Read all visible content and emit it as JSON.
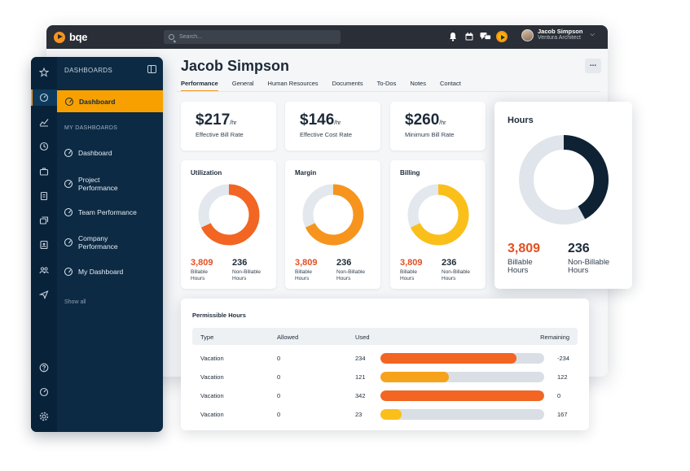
{
  "app": {
    "logo_text": "bqe"
  },
  "search": {
    "placeholder": "Search..."
  },
  "top_icons": [
    "bell-icon",
    "calendar-icon",
    "chat-icon",
    "timer-play-icon"
  ],
  "user": {
    "name": "Jacob Simpson",
    "role": "Ventura Architect"
  },
  "page": {
    "title": "Jacob Simpson",
    "more": "..."
  },
  "tabs": [
    "Performance",
    "General",
    "Human Resources",
    "Documents",
    "To-Dos",
    "Notes",
    "Contact"
  ],
  "active_tab": "Performance",
  "stats": [
    {
      "value": "$217",
      "unit": "/hr",
      "label": "Effective Bill Rate"
    },
    {
      "value": "$146",
      "unit": "/hr",
      "label": "Effective Cost Rate"
    },
    {
      "value": "$260",
      "unit": "/hr",
      "label": "Minimum Bill Rate"
    }
  ],
  "mini_charts": [
    {
      "title": "Utilization",
      "fraction": 0.68,
      "color": "#f26522",
      "track": "#e3e8ee",
      "billable": "3,809",
      "billable_label": [
        "Billable",
        "Hours"
      ],
      "non_billable": "236",
      "non_billable_label": [
        "Non-Billable",
        "Hours"
      ]
    },
    {
      "title": "Margin",
      "fraction": 0.68,
      "color": "#f7941d",
      "track": "#e3e8ee",
      "billable": "3,809",
      "billable_label": [
        "Billable",
        "Hours"
      ],
      "non_billable": "236",
      "non_billable_label": [
        "Non-Billable",
        "Hours"
      ]
    },
    {
      "title": "Billing",
      "fraction": 0.68,
      "color": "#fbbf1a",
      "track": "#e3e8ee",
      "billable": "3,809",
      "billable_label": [
        "Billable",
        "Hours"
      ],
      "non_billable": "236",
      "non_billable_label": [
        "Non-Billable",
        "Hours"
      ]
    }
  ],
  "hours": {
    "title": "Hours",
    "fraction": 0.42,
    "color": "#0f2233",
    "track": "#dfe5eb",
    "billable": "3,809",
    "billable_label": [
      "Billable",
      "Hours"
    ],
    "non_billable": "236",
    "non_billable_label": [
      "Non-Billable",
      "Hours"
    ]
  },
  "sidebar": {
    "header": "DASHBOARDS",
    "active_item": "Dashboard",
    "section": "MY DASHBOARDS",
    "items": [
      [
        "Dashboard"
      ],
      [
        "Project",
        "Performance"
      ],
      [
        "Team Performance"
      ],
      [
        "Company",
        "Performance"
      ],
      [
        "My Dashboard"
      ]
    ],
    "show_all": "Show all",
    "rail_icons": [
      "star-icon",
      "dashboard-icon",
      "chart-icon",
      "clock-icon",
      "briefcase-icon",
      "invoice-icon",
      "stack-icon",
      "contacts-icon",
      "people-icon",
      "send-icon",
      "help-icon",
      "dashboard-icon",
      "settings-icon"
    ]
  },
  "permissible": {
    "title": "Permissible Hours",
    "columns": [
      "Type",
      "Allowed",
      "Used",
      "Remaining"
    ],
    "rows": [
      {
        "type": "Vacation",
        "allowed": "0",
        "used": "234",
        "remaining": "-234",
        "fraction": 0.83,
        "color": "#f26522"
      },
      {
        "type": "Vacation",
        "allowed": "0",
        "used": "121",
        "remaining": "122",
        "fraction": 0.42,
        "color": "#f7a21b"
      },
      {
        "type": "Vacation",
        "allowed": "0",
        "used": "342",
        "remaining": "0",
        "fraction": 1.0,
        "color": "#f26522"
      },
      {
        "type": "Vacation",
        "allowed": "0",
        "used": "23",
        "remaining": "167",
        "fraction": 0.13,
        "color": "#fbbf1a"
      }
    ]
  }
}
